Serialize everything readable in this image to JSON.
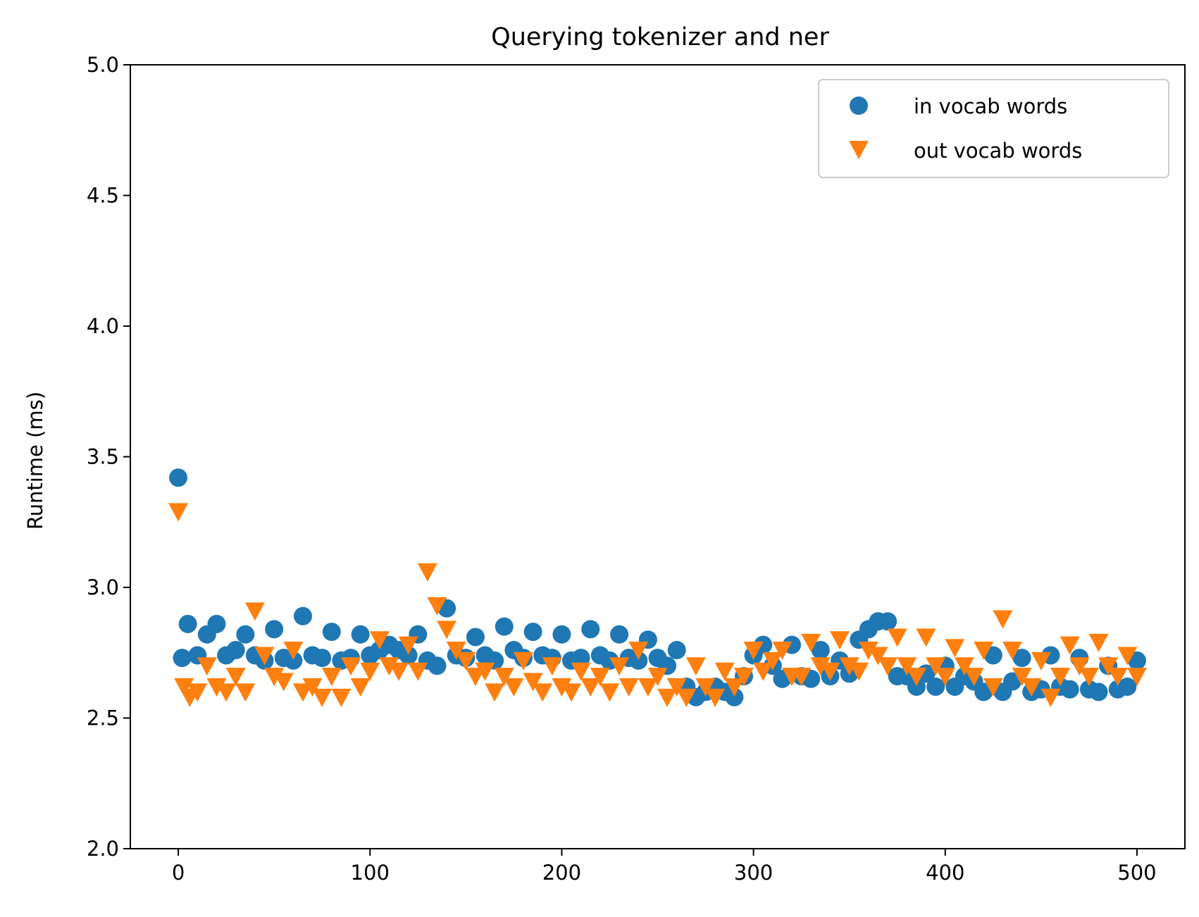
{
  "chart_data": {
    "type": "scatter",
    "title": "Querying tokenizer and ner",
    "xlabel": "",
    "ylabel": "Runtime (ms)",
    "xlim": [
      -25,
      525
    ],
    "ylim": [
      2.0,
      5.0
    ],
    "xticks": [
      0,
      100,
      200,
      300,
      400,
      500
    ],
    "yticks": [
      2.0,
      2.5,
      3.0,
      3.5,
      4.0,
      4.5,
      5.0
    ],
    "xtick_labels": [
      "0",
      "100",
      "200",
      "300",
      "400",
      "500"
    ],
    "ytick_labels": [
      "2.0",
      "2.5",
      "3.0",
      "3.5",
      "4.0",
      "4.5",
      "5.0"
    ],
    "grid": false,
    "legend_position": "top-right",
    "series": [
      {
        "name": "in vocab words",
        "marker": "circle",
        "color": "#1f77b4",
        "points": [
          [
            0,
            3.42
          ],
          [
            2,
            2.73
          ],
          [
            5,
            2.86
          ],
          [
            10,
            2.74
          ],
          [
            15,
            2.82
          ],
          [
            20,
            2.86
          ],
          [
            25,
            2.74
          ],
          [
            30,
            2.76
          ],
          [
            35,
            2.82
          ],
          [
            40,
            2.74
          ],
          [
            45,
            2.72
          ],
          [
            50,
            2.84
          ],
          [
            55,
            2.73
          ],
          [
            60,
            2.72
          ],
          [
            65,
            2.89
          ],
          [
            70,
            2.74
          ],
          [
            75,
            2.73
          ],
          [
            80,
            2.83
          ],
          [
            85,
            2.72
          ],
          [
            90,
            2.73
          ],
          [
            95,
            2.82
          ],
          [
            100,
            2.74
          ],
          [
            105,
            2.76
          ],
          [
            110,
            2.78
          ],
          [
            115,
            2.76
          ],
          [
            120,
            2.74
          ],
          [
            125,
            2.82
          ],
          [
            130,
            2.72
          ],
          [
            135,
            2.7
          ],
          [
            140,
            2.92
          ],
          [
            145,
            2.74
          ],
          [
            150,
            2.73
          ],
          [
            155,
            2.81
          ],
          [
            160,
            2.74
          ],
          [
            165,
            2.72
          ],
          [
            170,
            2.85
          ],
          [
            175,
            2.76
          ],
          [
            180,
            2.73
          ],
          [
            185,
            2.83
          ],
          [
            190,
            2.74
          ],
          [
            195,
            2.73
          ],
          [
            200,
            2.82
          ],
          [
            205,
            2.72
          ],
          [
            210,
            2.73
          ],
          [
            215,
            2.84
          ],
          [
            220,
            2.74
          ],
          [
            225,
            2.72
          ],
          [
            230,
            2.82
          ],
          [
            235,
            2.73
          ],
          [
            240,
            2.72
          ],
          [
            245,
            2.8
          ],
          [
            250,
            2.73
          ],
          [
            255,
            2.7
          ],
          [
            260,
            2.76
          ],
          [
            265,
            2.62
          ],
          [
            270,
            2.58
          ],
          [
            275,
            2.6
          ],
          [
            280,
            2.62
          ],
          [
            285,
            2.6
          ],
          [
            290,
            2.58
          ],
          [
            295,
            2.66
          ],
          [
            300,
            2.74
          ],
          [
            305,
            2.78
          ],
          [
            310,
            2.7
          ],
          [
            315,
            2.65
          ],
          [
            320,
            2.78
          ],
          [
            325,
            2.66
          ],
          [
            330,
            2.65
          ],
          [
            335,
            2.76
          ],
          [
            340,
            2.66
          ],
          [
            345,
            2.72
          ],
          [
            350,
            2.67
          ],
          [
            355,
            2.8
          ],
          [
            360,
            2.84
          ],
          [
            365,
            2.87
          ],
          [
            370,
            2.87
          ],
          [
            375,
            2.66
          ],
          [
            380,
            2.66
          ],
          [
            385,
            2.62
          ],
          [
            390,
            2.67
          ],
          [
            395,
            2.62
          ],
          [
            400,
            2.7
          ],
          [
            405,
            2.62
          ],
          [
            410,
            2.66
          ],
          [
            415,
            2.64
          ],
          [
            420,
            2.6
          ],
          [
            425,
            2.74
          ],
          [
            430,
            2.6
          ],
          [
            435,
            2.64
          ],
          [
            440,
            2.73
          ],
          [
            445,
            2.6
          ],
          [
            450,
            2.61
          ],
          [
            455,
            2.74
          ],
          [
            460,
            2.62
          ],
          [
            465,
            2.61
          ],
          [
            470,
            2.73
          ],
          [
            475,
            2.61
          ],
          [
            480,
            2.6
          ],
          [
            485,
            2.7
          ],
          [
            490,
            2.61
          ],
          [
            495,
            2.62
          ],
          [
            500,
            2.72
          ]
        ]
      },
      {
        "name": "out vocab words",
        "marker": "triangle-down",
        "color": "#ff7f0e",
        "points": [
          [
            0,
            3.29
          ],
          [
            3,
            2.62
          ],
          [
            6,
            2.58
          ],
          [
            10,
            2.6
          ],
          [
            15,
            2.7
          ],
          [
            20,
            2.62
          ],
          [
            25,
            2.6
          ],
          [
            30,
            2.66
          ],
          [
            35,
            2.6
          ],
          [
            40,
            2.91
          ],
          [
            45,
            2.74
          ],
          [
            50,
            2.66
          ],
          [
            55,
            2.64
          ],
          [
            60,
            2.76
          ],
          [
            65,
            2.6
          ],
          [
            70,
            2.62
          ],
          [
            75,
            2.58
          ],
          [
            80,
            2.66
          ],
          [
            85,
            2.58
          ],
          [
            90,
            2.7
          ],
          [
            95,
            2.62
          ],
          [
            100,
            2.68
          ],
          [
            105,
            2.8
          ],
          [
            110,
            2.7
          ],
          [
            115,
            2.68
          ],
          [
            120,
            2.78
          ],
          [
            125,
            2.68
          ],
          [
            130,
            3.06
          ],
          [
            135,
            2.93
          ],
          [
            140,
            2.84
          ],
          [
            145,
            2.76
          ],
          [
            150,
            2.72
          ],
          [
            155,
            2.66
          ],
          [
            160,
            2.68
          ],
          [
            165,
            2.6
          ],
          [
            170,
            2.66
          ],
          [
            175,
            2.62
          ],
          [
            180,
            2.72
          ],
          [
            185,
            2.64
          ],
          [
            190,
            2.6
          ],
          [
            195,
            2.7
          ],
          [
            200,
            2.62
          ],
          [
            205,
            2.6
          ],
          [
            210,
            2.68
          ],
          [
            215,
            2.62
          ],
          [
            220,
            2.66
          ],
          [
            225,
            2.6
          ],
          [
            230,
            2.7
          ],
          [
            235,
            2.62
          ],
          [
            240,
            2.76
          ],
          [
            245,
            2.62
          ],
          [
            250,
            2.66
          ],
          [
            255,
            2.58
          ],
          [
            260,
            2.62
          ],
          [
            265,
            2.58
          ],
          [
            270,
            2.7
          ],
          [
            275,
            2.62
          ],
          [
            280,
            2.58
          ],
          [
            285,
            2.68
          ],
          [
            290,
            2.62
          ],
          [
            295,
            2.66
          ],
          [
            300,
            2.76
          ],
          [
            305,
            2.68
          ],
          [
            310,
            2.72
          ],
          [
            315,
            2.76
          ],
          [
            320,
            2.66
          ],
          [
            325,
            2.66
          ],
          [
            330,
            2.79
          ],
          [
            335,
            2.7
          ],
          [
            340,
            2.68
          ],
          [
            345,
            2.8
          ],
          [
            350,
            2.7
          ],
          [
            355,
            2.68
          ],
          [
            360,
            2.76
          ],
          [
            365,
            2.74
          ],
          [
            370,
            2.7
          ],
          [
            375,
            2.81
          ],
          [
            380,
            2.7
          ],
          [
            385,
            2.66
          ],
          [
            390,
            2.81
          ],
          [
            395,
            2.7
          ],
          [
            400,
            2.66
          ],
          [
            405,
            2.77
          ],
          [
            410,
            2.7
          ],
          [
            415,
            2.66
          ],
          [
            420,
            2.76
          ],
          [
            425,
            2.62
          ],
          [
            430,
            2.88
          ],
          [
            435,
            2.76
          ],
          [
            440,
            2.66
          ],
          [
            445,
            2.62
          ],
          [
            450,
            2.72
          ],
          [
            455,
            2.58
          ],
          [
            460,
            2.66
          ],
          [
            465,
            2.78
          ],
          [
            470,
            2.7
          ],
          [
            475,
            2.66
          ],
          [
            480,
            2.79
          ],
          [
            485,
            2.7
          ],
          [
            490,
            2.66
          ],
          [
            495,
            2.74
          ],
          [
            500,
            2.66
          ]
        ]
      }
    ]
  }
}
